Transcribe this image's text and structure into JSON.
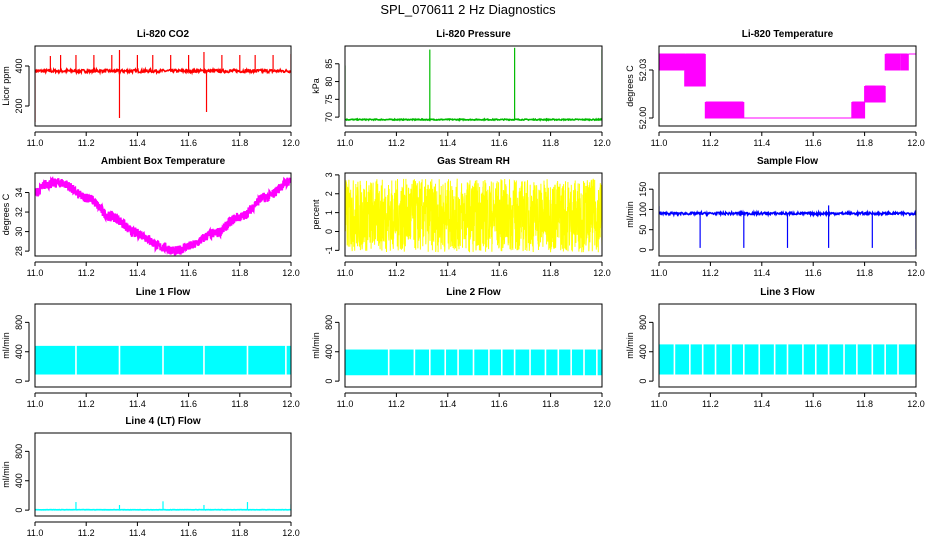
{
  "page": {
    "title": "SPL_070611  2 Hz Diagnostics"
  },
  "chart_data": [
    {
      "type": "line",
      "title": "Li-820 CO2",
      "xlabel": "",
      "ylabel": "Licor ppm",
      "color": "#ff0000",
      "xlim": [
        11.0,
        12.0
      ],
      "ylim": [
        100,
        500
      ],
      "xticks": [
        "11.0",
        "11.2",
        "11.4",
        "11.6",
        "11.8",
        "12.0"
      ],
      "yticks": [
        {
          "v": 200,
          "label": "200"
        },
        {
          "v": 400,
          "label": "400"
        }
      ],
      "series": [
        {
          "name": "CO2",
          "baseline": 375,
          "noise": 8,
          "spikes": [
            {
              "x": 11.0,
              "y": 120
            },
            {
              "x": 11.06,
              "y": 450
            },
            {
              "x": 11.1,
              "y": 455
            },
            {
              "x": 11.16,
              "y": 455
            },
            {
              "x": 11.23,
              "y": 455
            },
            {
              "x": 11.3,
              "y": 455
            },
            {
              "x": 11.33,
              "y": 140
            },
            {
              "x": 11.33,
              "y": 480
            },
            {
              "x": 11.4,
              "y": 455
            },
            {
              "x": 11.46,
              "y": 455
            },
            {
              "x": 11.53,
              "y": 455
            },
            {
              "x": 11.6,
              "y": 455
            },
            {
              "x": 11.66,
              "y": 470
            },
            {
              "x": 11.67,
              "y": 170
            },
            {
              "x": 11.73,
              "y": 455
            },
            {
              "x": 11.8,
              "y": 455
            },
            {
              "x": 11.86,
              "y": 455
            },
            {
              "x": 11.93,
              "y": 455
            },
            {
              "x": 12.0,
              "y": 460
            }
          ]
        }
      ]
    },
    {
      "type": "line",
      "title": "Li-820 Pressure",
      "xlabel": "",
      "ylabel": "kPa",
      "color": "#00bb00",
      "xlim": [
        11.0,
        12.0
      ],
      "ylim": [
        67.5,
        90
      ],
      "xticks": [
        "11.0",
        "11.2",
        "11.4",
        "11.6",
        "11.8",
        "12.0"
      ],
      "yticks": [
        {
          "v": 70,
          "label": "70"
        },
        {
          "v": 75,
          "label": "75"
        },
        {
          "v": 80,
          "label": "80"
        },
        {
          "v": 85,
          "label": "85"
        }
      ],
      "series": [
        {
          "name": "Pressure",
          "baseline": 69.3,
          "noise": 0.15,
          "spikes": [
            {
              "x": 11.0,
              "y": 84.5
            },
            {
              "x": 11.33,
              "y": 89
            },
            {
              "x": 11.66,
              "y": 89.5
            },
            {
              "x": 12.0,
              "y": 89
            }
          ]
        }
      ]
    },
    {
      "type": "line",
      "title": "Li-820 Temperature",
      "xlabel": "",
      "ylabel": "degrees C",
      "color": "#ff00ff",
      "xlim": [
        11.0,
        12.0
      ],
      "ylim": [
        51.995,
        52.045
      ],
      "xticks": [
        "11.0",
        "11.2",
        "11.4",
        "11.6",
        "11.8",
        "12.0"
      ],
      "yticks": [
        {
          "v": 52.0,
          "label": "52.00"
        },
        {
          "v": 52.03,
          "label": "52.03"
        }
      ],
      "series": [
        {
          "name": "Temperature",
          "levels": [
            52.0,
            52.01,
            52.02,
            52.03,
            52.04
          ],
          "segments": [
            [
              11.0,
              11.1,
              52.04,
              52.03
            ],
            [
              11.1,
              11.18,
              52.04,
              52.02
            ],
            [
              11.18,
              11.33,
              52.01,
              52.0
            ],
            [
              11.33,
              11.75,
              52.0,
              52.0
            ],
            [
              11.75,
              11.8,
              52.01,
              52.0
            ],
            [
              11.8,
              11.88,
              52.02,
              52.01
            ],
            [
              11.88,
              11.97,
              52.04,
              52.03
            ],
            [
              11.97,
              12.0,
              52.04,
              52.04
            ]
          ]
        }
      ]
    },
    {
      "type": "line",
      "title": "Ambient Box Temperature",
      "xlabel": "",
      "ylabel": "degrees C",
      "color": "#ff00ff",
      "xlim": [
        11.0,
        12.0
      ],
      "ylim": [
        27.5,
        36
      ],
      "xticks": [
        "11.0",
        "11.2",
        "11.4",
        "11.6",
        "11.8",
        "12.0"
      ],
      "yticks": [
        {
          "v": 28,
          "label": "28"
        },
        {
          "v": 30,
          "label": "30"
        },
        {
          "v": 32,
          "label": "32"
        },
        {
          "v": 34,
          "label": "34"
        }
      ],
      "series": [
        {
          "name": "Ambient",
          "points": [
            [
              11.0,
              34.0
            ],
            [
              11.05,
              34.9
            ],
            [
              11.1,
              35.0
            ],
            [
              11.2,
              33.5
            ],
            [
              11.3,
              31.5
            ],
            [
              11.4,
              29.8
            ],
            [
              11.5,
              28.4
            ],
            [
              11.55,
              28.0
            ],
            [
              11.6,
              28.5
            ],
            [
              11.7,
              29.8
            ],
            [
              11.8,
              31.5
            ],
            [
              11.9,
              33.5
            ],
            [
              12.0,
              35.2
            ]
          ],
          "noise": 0.5
        }
      ]
    },
    {
      "type": "line",
      "title": "Gas Stream RH",
      "xlabel": "",
      "ylabel": "percent",
      "color": "#ffff00",
      "xlim": [
        11.0,
        12.0
      ],
      "ylim": [
        -1.3,
        3.1
      ],
      "xticks": [
        "11.0",
        "11.2",
        "11.4",
        "11.6",
        "11.8",
        "12.0"
      ],
      "yticks": [
        {
          "v": -1,
          "label": "-1"
        },
        {
          "v": 0,
          "label": "0"
        },
        {
          "v": 1,
          "label": "1"
        },
        {
          "v": 2,
          "label": "2"
        },
        {
          "v": 3,
          "label": "3"
        }
      ],
      "series": [
        {
          "name": "RH",
          "low": -1.1,
          "high": 2.8
        }
      ]
    },
    {
      "type": "line",
      "title": "Sample Flow",
      "xlabel": "",
      "ylabel": "ml/min",
      "color": "#0000ff",
      "xlim": [
        11.0,
        12.0
      ],
      "ylim": [
        -15,
        190
      ],
      "xticks": [
        "11.0",
        "11.2",
        "11.4",
        "11.6",
        "11.8",
        "12.0"
      ],
      "yticks": [
        {
          "v": 0,
          "label": "0"
        },
        {
          "v": 50,
          "label": "50"
        },
        {
          "v": 100,
          "label": "100"
        },
        {
          "v": 150,
          "label": "150"
        }
      ],
      "series": [
        {
          "name": "Sample",
          "baseline": 90,
          "noise": 3,
          "spikes": [
            {
              "x": 11.0,
              "y": 108
            },
            {
              "x": 11.16,
              "y": 5
            },
            {
              "x": 11.33,
              "y": 5
            },
            {
              "x": 11.5,
              "y": 5
            },
            {
              "x": 11.66,
              "y": 5
            },
            {
              "x": 11.66,
              "y": 110
            },
            {
              "x": 11.83,
              "y": 5
            },
            {
              "x": 12.0,
              "y": 2
            }
          ]
        }
      ]
    },
    {
      "type": "area",
      "title": "Line 1 Flow",
      "xlabel": "",
      "ylabel": "ml/min",
      "color": "#00ffff",
      "xlim": [
        11.0,
        12.0
      ],
      "ylim": [
        -80,
        1050
      ],
      "xticks": [
        "11.0",
        "11.2",
        "11.4",
        "11.6",
        "11.8",
        "12.0"
      ],
      "yticks": [
        {
          "v": 0,
          "label": "0"
        },
        {
          "v": 400,
          "label": "400"
        },
        {
          "v": 800,
          "label": "800"
        }
      ],
      "series": [
        {
          "name": "Line 1",
          "low": 90,
          "high": 480,
          "gaps": [
            11.16,
            11.33,
            11.5,
            11.66,
            11.83,
            11.98
          ]
        }
      ]
    },
    {
      "type": "area",
      "title": "Line 2 Flow",
      "xlabel": "",
      "ylabel": "ml/min",
      "color": "#00ffff",
      "xlim": [
        11.0,
        12.0
      ],
      "ylim": [
        -80,
        1050
      ],
      "xticks": [
        "11.0",
        "11.2",
        "11.4",
        "11.6",
        "11.8",
        "12.0"
      ],
      "yticks": [
        {
          "v": 0,
          "label": "0"
        },
        {
          "v": 400,
          "label": "400"
        },
        {
          "v": 800,
          "label": "800"
        }
      ],
      "series": [
        {
          "name": "Line 2",
          "low": 80,
          "high": 430,
          "gaps": [
            11.17,
            11.27,
            11.33,
            11.39,
            11.44,
            11.5,
            11.56,
            11.61,
            11.66,
            11.72,
            11.78,
            11.83,
            11.88,
            11.93,
            11.98
          ]
        }
      ]
    },
    {
      "type": "area",
      "title": "Line 3 Flow",
      "xlabel": "",
      "ylabel": "ml/min",
      "color": "#00ffff",
      "xlim": [
        11.0,
        12.0
      ],
      "ylim": [
        -80,
        1050
      ],
      "xticks": [
        "11.0",
        "11.2",
        "11.4",
        "11.6",
        "11.8",
        "12.0"
      ],
      "yticks": [
        {
          "v": 0,
          "label": "0"
        },
        {
          "v": 400,
          "label": "400"
        },
        {
          "v": 800,
          "label": "800"
        }
      ],
      "series": [
        {
          "name": "Line 3",
          "low": 90,
          "high": 500,
          "gaps": [
            11.06,
            11.12,
            11.17,
            11.22,
            11.28,
            11.33,
            11.39,
            11.45,
            11.5,
            11.56,
            11.61,
            11.66,
            11.72,
            11.77,
            11.83,
            11.88,
            11.93
          ]
        }
      ]
    },
    {
      "type": "line",
      "title": "Line 4 (LT) Flow",
      "xlabel": "",
      "ylabel": "ml/min",
      "color": "#00ffff",
      "xlim": [
        11.0,
        12.0
      ],
      "ylim": [
        -80,
        1050
      ],
      "xticks": [
        "11.0",
        "11.2",
        "11.4",
        "11.6",
        "11.8",
        "12.0"
      ],
      "yticks": [
        {
          "v": 0,
          "label": "0"
        },
        {
          "v": 400,
          "label": "400"
        },
        {
          "v": 800,
          "label": "800"
        }
      ],
      "series": [
        {
          "name": "Line 4",
          "baseline": 5,
          "noise": 2,
          "spikes": [
            {
              "x": 11.16,
              "y": 110
            },
            {
              "x": 11.33,
              "y": 70
            },
            {
              "x": 11.5,
              "y": 120
            },
            {
              "x": 11.66,
              "y": 70
            },
            {
              "x": 11.83,
              "y": 110
            },
            {
              "x": 12.0,
              "y": 80
            }
          ]
        }
      ]
    }
  ]
}
